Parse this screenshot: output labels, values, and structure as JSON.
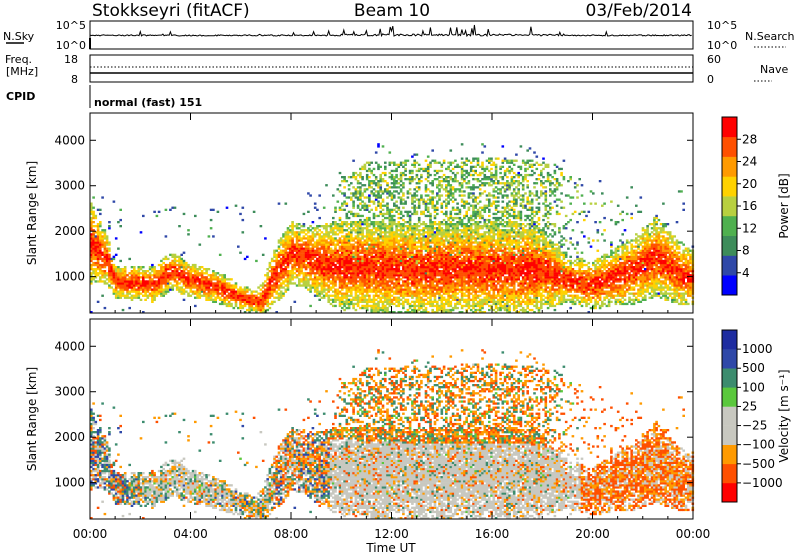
{
  "header": {
    "station": "Stokkseyri (fitACF)",
    "beam": "Beam 10",
    "date": "03/Feb/2014"
  },
  "noise_panel": {
    "left_label": "N.Sky",
    "left_ticks": [
      "10^5",
      "10^0"
    ],
    "right_ticks": [
      "10^5",
      "10^0"
    ],
    "right_label": "N.Search"
  },
  "freq_panel": {
    "label_line1": "Freq.",
    "label_line2": "[MHz]",
    "left_ticks": [
      "18",
      "8"
    ],
    "right_ticks": [
      "60",
      "0"
    ],
    "right_label": "Nave"
  },
  "cpid": {
    "label": "CPID",
    "mode": "normal (fast) 151"
  },
  "colors": {
    "power": [
      "#0000ff",
      "#2f48a8",
      "#3d8c5a",
      "#4fb04f",
      "#b8d040",
      "#ffd200",
      "#ff9a00",
      "#ff5000",
      "#ff0000"
    ],
    "velocity": [
      "#ff0000",
      "#ff5000",
      "#ff9a00",
      "#c8c8c0",
      "#c8c8c0",
      "#5ac83c",
      "#3c8c6e",
      "#2f48a8",
      "#1e2ca0"
    ],
    "ground_scatter": "#c8c8c0"
  },
  "chart_data": [
    {
      "type": "heatmap",
      "name": "power",
      "ylabel": "Slant Range [km]",
      "yticks": [
        "1000",
        "2000",
        "3000",
        "4000"
      ],
      "ylim": [
        200,
        4600
      ],
      "xlim": [
        0,
        24
      ],
      "colorbar_label": "Power [dB]",
      "colorbar_ticks": [
        "4",
        "8",
        "12",
        "16",
        "20",
        "24",
        "28"
      ],
      "colorbar_range": [
        0,
        32
      ]
    },
    {
      "type": "heatmap",
      "name": "velocity",
      "ylabel": "Slant Range [km]",
      "yticks": [
        "1000",
        "2000",
        "3000",
        "4000"
      ],
      "ylim": [
        200,
        4600
      ],
      "xlim": [
        0,
        24
      ],
      "colorbar_label": "Velocity [m s⁻¹]",
      "colorbar_ticks": [
        "1000",
        "500",
        "100",
        "25",
        "−25",
        "−100",
        "−500",
        "−1000"
      ]
    }
  ],
  "x_axis": {
    "ticks": [
      "00:00",
      "04:00",
      "08:00",
      "12:00",
      "16:00",
      "20:00",
      "00:00"
    ],
    "label": "Time UT"
  }
}
